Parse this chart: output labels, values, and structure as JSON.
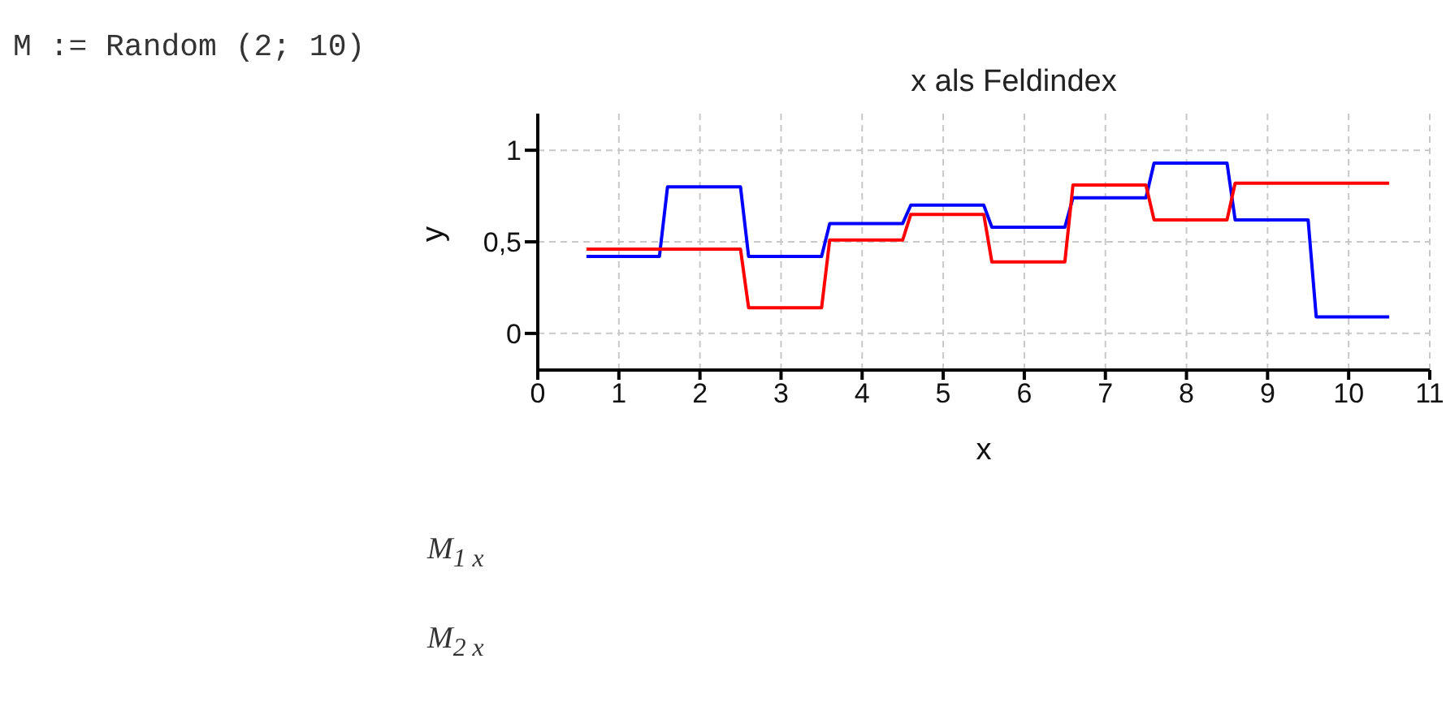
{
  "chart_data": {
    "type": "line",
    "title": "x als Feldindex",
    "xlabel": "x",
    "ylabel": "y",
    "annotations": [
      "M := Random (2; 10)",
      "M$_{1 x}$",
      "M$_{2 x}$"
    ],
    "x": [
      0.6,
      1.5,
      1.6,
      2.5,
      2.6,
      3.5,
      3.6,
      4.5,
      4.6,
      5.5,
      5.6,
      6.5,
      6.6,
      7.5,
      7.6,
      8.5,
      8.6,
      9.5,
      9.6,
      10.5
    ],
    "series": [
      {
        "color": "#0000ff",
        "values": [
          0.42,
          0.42,
          0.8,
          0.8,
          0.42,
          0.42,
          0.6,
          0.6,
          0.7,
          0.7,
          0.58,
          0.58,
          0.74,
          0.74,
          0.93,
          0.93,
          0.62,
          0.62,
          0.09,
          0.09
        ]
      },
      {
        "color": "#ff0000",
        "values": [
          0.46,
          0.46,
          0.46,
          0.46,
          0.14,
          0.14,
          0.51,
          0.51,
          0.65,
          0.65,
          0.39,
          0.39,
          0.81,
          0.81,
          0.62,
          0.62,
          0.82,
          0.82,
          0.82,
          0.82
        ]
      }
    ],
    "xlim": [
      0,
      11
    ],
    "xticks": [
      0,
      1,
      2,
      3,
      4,
      5,
      6,
      7,
      8,
      9,
      10,
      11
    ],
    "ylim": [
      -0.2,
      1.2
    ],
    "yticks": [
      0,
      {
        "value": 0.5,
        "label": "0,5"
      },
      1
    ],
    "grid": true,
    "legend": false,
    "marker": "none",
    "line_style": "solid"
  }
}
